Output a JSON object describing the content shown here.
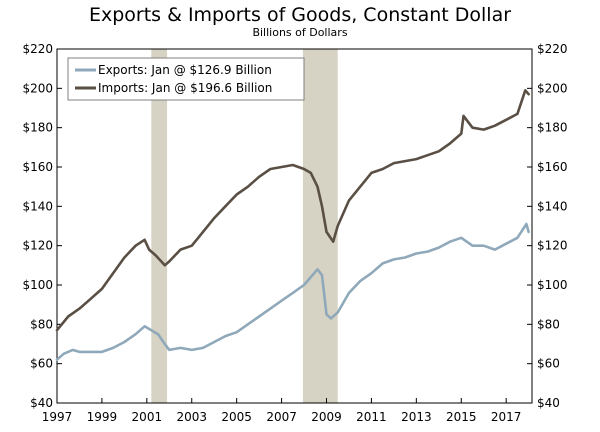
{
  "chart_data": {
    "type": "line",
    "title": "Exports & Imports of Goods, Constant Dollar",
    "subtitle": "Billions of Dollars",
    "xlabel": "",
    "ylabel": "",
    "xlim": [
      1997.0,
      2018.15
    ],
    "ylim": [
      40,
      220
    ],
    "x_ticks": [
      1997,
      1999,
      2001,
      2003,
      2005,
      2007,
      2009,
      2011,
      2013,
      2015,
      2017
    ],
    "y_ticks": [
      40,
      60,
      80,
      100,
      120,
      140,
      160,
      180,
      200,
      220
    ],
    "y_tick_format": "$",
    "grid": false,
    "legend_position": "top-left",
    "recessions": [
      [
        2001.2,
        2001.9
      ],
      [
        2007.95,
        2009.5
      ]
    ],
    "recession_color": "#d6d2c4",
    "series": [
      {
        "name": "Exports: Jan @ $126.9 Billion",
        "color": "#8fa9bb",
        "x": [
          1997.0,
          1997.3,
          1997.7,
          1998.0,
          1998.5,
          1999.0,
          1999.5,
          2000.0,
          2000.5,
          2000.9,
          2001.2,
          2001.5,
          2001.8,
          2002.0,
          2002.5,
          2003.0,
          2003.5,
          2004.0,
          2004.5,
          2005.0,
          2005.5,
          2006.0,
          2006.5,
          2007.0,
          2007.5,
          2008.0,
          2008.3,
          2008.6,
          2008.8,
          2009.0,
          2009.2,
          2009.5,
          2010.0,
          2010.5,
          2011.0,
          2011.5,
          2012.0,
          2012.5,
          2013.0,
          2013.5,
          2014.0,
          2014.5,
          2015.0,
          2015.5,
          2016.0,
          2016.5,
          2017.0,
          2017.5,
          2017.9,
          2018.0
        ],
        "values": [
          62,
          65,
          67,
          66,
          66,
          66,
          68,
          71,
          75,
          79,
          77,
          75,
          70,
          67,
          68,
          67,
          68,
          71,
          74,
          76,
          80,
          84,
          88,
          92,
          96,
          100,
          104,
          108,
          105,
          85,
          83,
          86,
          96,
          102,
          106,
          111,
          113,
          114,
          116,
          117,
          119,
          122,
          124,
          120,
          120,
          118,
          121,
          124,
          131,
          127
        ]
      },
      {
        "name": "Imports: Jan @ $196.6 Billion",
        "color": "#5a4f44",
        "x": [
          1997.0,
          1997.5,
          1998.0,
          1998.5,
          1999.0,
          1999.5,
          2000.0,
          2000.5,
          2000.9,
          2001.1,
          2001.4,
          2001.8,
          2002.0,
          2002.5,
          2003.0,
          2003.5,
          2004.0,
          2004.5,
          2005.0,
          2005.5,
          2006.0,
          2006.5,
          2007.0,
          2007.5,
          2008.0,
          2008.3,
          2008.6,
          2008.8,
          2009.0,
          2009.3,
          2009.5,
          2010.0,
          2010.5,
          2011.0,
          2011.5,
          2012.0,
          2012.5,
          2013.0,
          2013.5,
          2014.0,
          2014.5,
          2015.0,
          2015.1,
          2015.5,
          2016.0,
          2016.5,
          2017.0,
          2017.5,
          2017.85,
          2018.0
        ],
        "values": [
          77,
          84,
          88,
          93,
          98,
          106,
          114,
          120,
          123,
          118,
          115,
          110,
          112,
          118,
          120,
          127,
          134,
          140,
          146,
          150,
          155,
          159,
          160,
          161,
          159,
          157,
          150,
          140,
          127,
          122,
          130,
          143,
          150,
          157,
          159,
          162,
          163,
          164,
          166,
          168,
          172,
          177,
          186,
          180,
          179,
          181,
          184,
          187,
          199,
          197
        ]
      }
    ]
  }
}
